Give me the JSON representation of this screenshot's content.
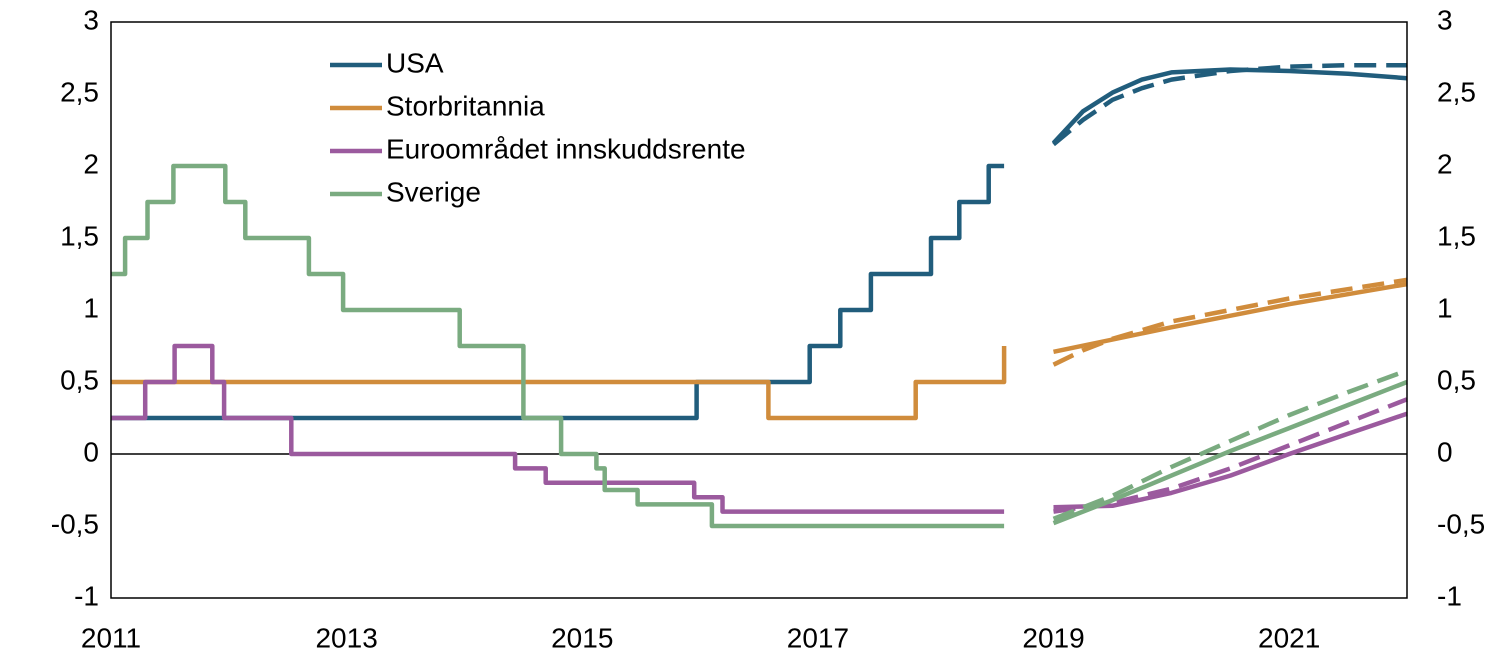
{
  "chart_data": {
    "type": "line",
    "xlim": [
      2011,
      2022
    ],
    "xticks": [
      2011,
      2013,
      2015,
      2017,
      2019,
      2021
    ],
    "ylim": [
      -1,
      3
    ],
    "yticks": [
      -1,
      {
        "value": -0.5,
        "label": "-0,5"
      },
      0,
      {
        "value": 0.5,
        "label": "0,5"
      },
      1,
      {
        "value": 1.5,
        "label": "1,5"
      },
      2,
      {
        "value": 2.5,
        "label": "2,5"
      },
      3
    ],
    "y2lim": [
      -1,
      3
    ],
    "y2ticks": [
      -1,
      {
        "value": -0.5,
        "label": "-0,5"
      },
      0,
      {
        "value": 0.5,
        "label": "0,5"
      },
      1,
      {
        "value": 1.5,
        "label": "1,5"
      },
      2,
      {
        "value": 2.5,
        "label": "2,5"
      },
      3
    ],
    "grid": false,
    "legend": "upper left",
    "series": [
      {
        "name": "USA",
        "color": "#215d7c",
        "step": true,
        "x": [
          2011,
          2015.97,
          2016.93,
          2017.19,
          2017.45,
          2017.96,
          2018.2,
          2018.45,
          2018.58
        ],
        "values": [
          0.25,
          0.5,
          0.75,
          1,
          1.25,
          1.5,
          1.75,
          2,
          2
        ]
      },
      {
        "name": "Storbritannia",
        "color": "#d08c3c",
        "step": true,
        "x": [
          2011,
          2016.58,
          2017.83,
          2018.58
        ],
        "values": [
          0.5,
          0.25,
          0.5,
          0.75
        ]
      },
      {
        "name": "Euroområdet innskuddsrente",
        "color": "#9b5a9e",
        "step": true,
        "x": [
          2011,
          2011.29,
          2011.54,
          2011.86,
          2011.96,
          2012.53,
          2014.43,
          2014.69,
          2015.95,
          2016.19,
          2018.58
        ],
        "values": [
          0.25,
          0.5,
          0.75,
          0.5,
          0.25,
          0,
          -0.1,
          -0.2,
          -0.3,
          -0.4,
          -0.4
        ]
      },
      {
        "name": "Sverige",
        "color": "#7aab80",
        "step": true,
        "x": [
          2011,
          2011.12,
          2011.31,
          2011.53,
          2011.97,
          2012.14,
          2012.68,
          2012.97,
          2013.96,
          2014.5,
          2014.82,
          2015.12,
          2015.19,
          2015.47,
          2016.1,
          2018.58
        ],
        "values": [
          1.25,
          1.5,
          1.75,
          2,
          1.75,
          1.5,
          1.25,
          1,
          0.75,
          0.25,
          0,
          -0.1,
          -0.25,
          -0.35,
          -0.5,
          -0.5
        ]
      },
      {
        "color": "#215d7c",
        "x": [
          2019,
          2019.25,
          2019.5,
          2019.75,
          2020,
          2020.5,
          2021,
          2021.5,
          2022
        ],
        "values": [
          2.16,
          2.38,
          2.51,
          2.6,
          2.65,
          2.67,
          2.66,
          2.64,
          2.61
        ]
      },
      {
        "color": "#215d7c",
        "dashed": true,
        "x": [
          2019,
          2019.25,
          2019.5,
          2019.75,
          2020,
          2020.5,
          2021,
          2021.5,
          2022
        ],
        "values": [
          2.15,
          2.32,
          2.46,
          2.54,
          2.6,
          2.66,
          2.69,
          2.7,
          2.7
        ]
      },
      {
        "color": "#d08c3c",
        "x": [
          2019,
          2020,
          2021,
          2022
        ],
        "values": [
          0.71,
          0.88,
          1.04,
          1.18
        ]
      },
      {
        "color": "#d08c3c",
        "dashed": true,
        "x": [
          2019,
          2019.25,
          2019.5,
          2020,
          2021,
          2022
        ],
        "values": [
          0.62,
          0.72,
          0.8,
          0.92,
          1.08,
          1.21
        ]
      },
      {
        "color": "#9b5a9e",
        "x": [
          2019,
          2019.5,
          2020,
          2020.5,
          2021,
          2021.5,
          2022
        ],
        "values": [
          -0.37,
          -0.36,
          -0.27,
          -0.15,
          0,
          0.14,
          0.28
        ]
      },
      {
        "color": "#9b5a9e",
        "dashed": true,
        "x": [
          2019,
          2019.5,
          2020,
          2020.5,
          2021,
          2021.5,
          2022
        ],
        "values": [
          -0.4,
          -0.34,
          -0.24,
          -0.1,
          0.06,
          0.22,
          0.38
        ]
      },
      {
        "color": "#7aab80",
        "x": [
          2019,
          2019.5,
          2020,
          2020.5,
          2021,
          2021.5,
          2022
        ],
        "values": [
          -0.48,
          -0.32,
          -0.15,
          0.02,
          0.18,
          0.34,
          0.5
        ]
      },
      {
        "color": "#7aab80",
        "dashed": true,
        "x": [
          2019,
          2019.5,
          2020,
          2020.5,
          2021,
          2021.5,
          2022
        ],
        "values": [
          -0.45,
          -0.29,
          -0.09,
          0.09,
          0.27,
          0.43,
          0.58
        ]
      }
    ]
  }
}
